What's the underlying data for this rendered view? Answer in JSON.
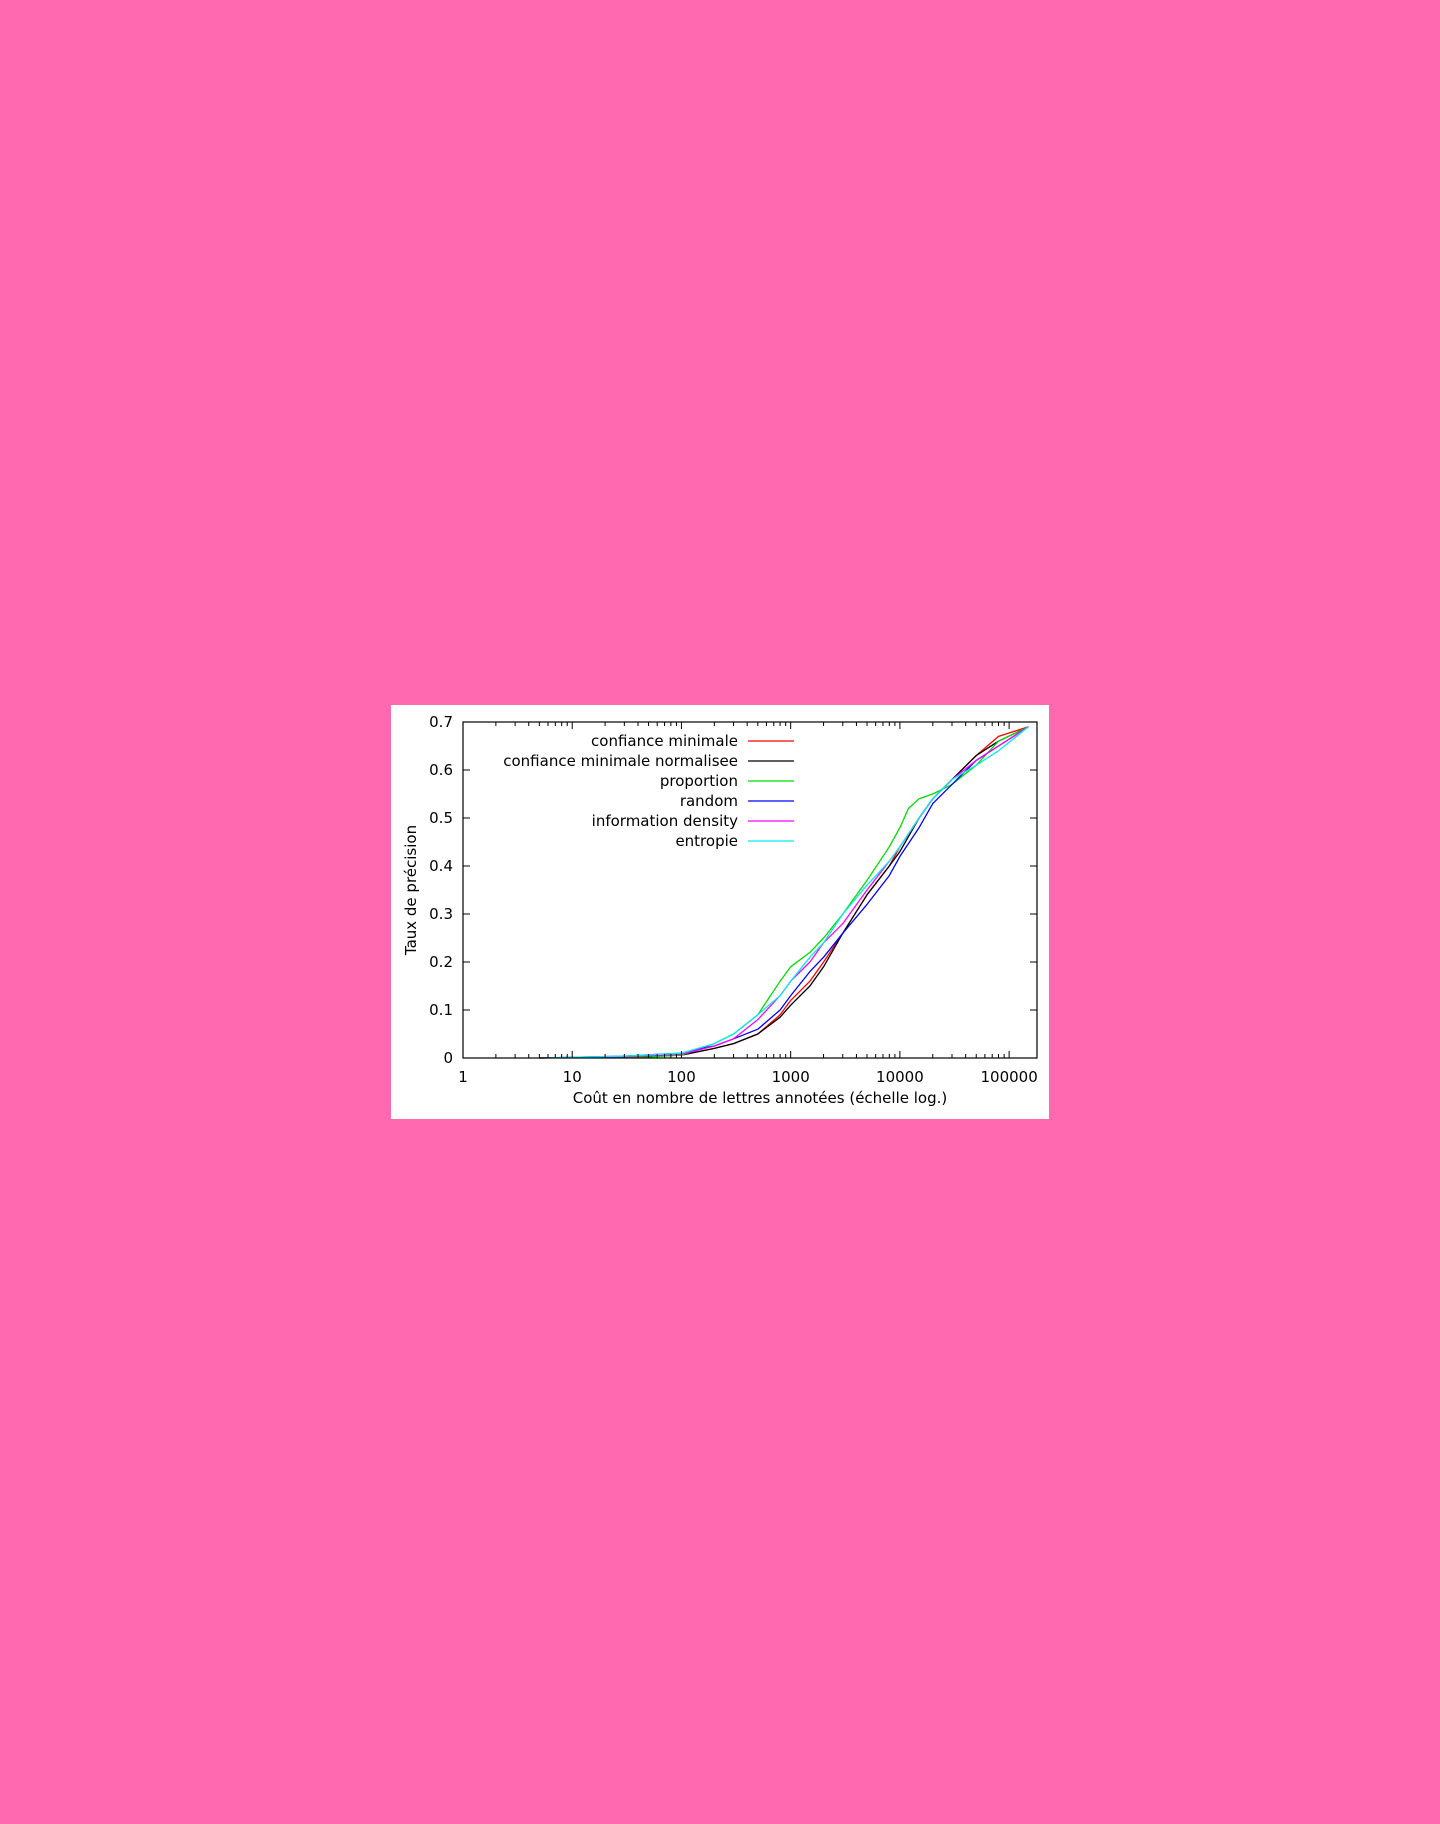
{
  "chart_data": {
    "type": "line",
    "title": "",
    "xlabel": "Coût en nombre de lettres annotées (échelle log.)",
    "ylabel": "Taux de précision",
    "x_scale": "log",
    "xlim": [
      1,
      180000
    ],
    "ylim": [
      0,
      0.7
    ],
    "x_ticks": [
      1,
      10,
      100,
      1000,
      10000,
      100000
    ],
    "x_tick_labels": [
      "1",
      "10",
      "100",
      "1000",
      "10000",
      "100000"
    ],
    "y_ticks": [
      0,
      0.1,
      0.2,
      0.3,
      0.4,
      0.5,
      0.6,
      0.7
    ],
    "y_tick_labels": [
      "0",
      "0.1",
      "0.2",
      "0.3",
      "0.4",
      "0.5",
      "0.6",
      "0.7"
    ],
    "grid": false,
    "legend_position": "top-left",
    "series": [
      {
        "name": "confiance minimale",
        "color": "#ff0000",
        "points": [
          [
            5,
            0
          ],
          [
            30,
            0.002
          ],
          [
            100,
            0.006
          ],
          [
            200,
            0.02
          ],
          [
            300,
            0.03
          ],
          [
            500,
            0.05
          ],
          [
            800,
            0.09
          ],
          [
            1000,
            0.12
          ],
          [
            1500,
            0.16
          ],
          [
            2000,
            0.2
          ],
          [
            3000,
            0.26
          ],
          [
            5000,
            0.34
          ],
          [
            8000,
            0.4
          ],
          [
            10000,
            0.44
          ],
          [
            15000,
            0.5
          ],
          [
            20000,
            0.54
          ],
          [
            30000,
            0.58
          ],
          [
            50000,
            0.63
          ],
          [
            80000,
            0.67
          ],
          [
            150000,
            0.69
          ]
        ]
      },
      {
        "name": "confiance minimale normalisee",
        "color": "#000000",
        "points": [
          [
            5,
            0
          ],
          [
            30,
            0.002
          ],
          [
            100,
            0.006
          ],
          [
            200,
            0.02
          ],
          [
            300,
            0.03
          ],
          [
            500,
            0.05
          ],
          [
            800,
            0.085
          ],
          [
            1000,
            0.11
          ],
          [
            1500,
            0.15
          ],
          [
            2000,
            0.19
          ],
          [
            3000,
            0.26
          ],
          [
            5000,
            0.34
          ],
          [
            8000,
            0.4
          ],
          [
            10000,
            0.43
          ],
          [
            15000,
            0.5
          ],
          [
            20000,
            0.54
          ],
          [
            30000,
            0.58
          ],
          [
            50000,
            0.63
          ],
          [
            80000,
            0.66
          ],
          [
            150000,
            0.69
          ]
        ]
      },
      {
        "name": "proportion",
        "color": "#00dd00",
        "points": [
          [
            5,
            0
          ],
          [
            50,
            0.002
          ],
          [
            100,
            0.006
          ],
          [
            150,
            0.02
          ],
          [
            200,
            0.03
          ],
          [
            300,
            0.05
          ],
          [
            500,
            0.09
          ],
          [
            800,
            0.16
          ],
          [
            1000,
            0.19
          ],
          [
            1500,
            0.22
          ],
          [
            2000,
            0.25
          ],
          [
            3000,
            0.3
          ],
          [
            5000,
            0.37
          ],
          [
            8000,
            0.44
          ],
          [
            10000,
            0.48
          ],
          [
            12000,
            0.52
          ],
          [
            15000,
            0.54
          ],
          [
            20000,
            0.55
          ],
          [
            30000,
            0.57
          ],
          [
            50000,
            0.61
          ],
          [
            80000,
            0.66
          ],
          [
            150000,
            0.69
          ]
        ]
      },
      {
        "name": "random",
        "color": "#0000ff",
        "points": [
          [
            5,
            0
          ],
          [
            30,
            0.004
          ],
          [
            100,
            0.01
          ],
          [
            150,
            0.02
          ],
          [
            200,
            0.025
          ],
          [
            300,
            0.04
          ],
          [
            500,
            0.06
          ],
          [
            800,
            0.1
          ],
          [
            1000,
            0.13
          ],
          [
            1500,
            0.18
          ],
          [
            2000,
            0.21
          ],
          [
            3000,
            0.26
          ],
          [
            5000,
            0.32
          ],
          [
            8000,
            0.38
          ],
          [
            10000,
            0.42
          ],
          [
            15000,
            0.48
          ],
          [
            20000,
            0.53
          ],
          [
            30000,
            0.57
          ],
          [
            50000,
            0.62
          ],
          [
            80000,
            0.65
          ],
          [
            150000,
            0.69
          ]
        ]
      },
      {
        "name": "information density",
        "color": "#ff00ff",
        "points": [
          [
            5,
            0
          ],
          [
            30,
            0.003
          ],
          [
            100,
            0.008
          ],
          [
            200,
            0.025
          ],
          [
            300,
            0.04
          ],
          [
            500,
            0.08
          ],
          [
            800,
            0.13
          ],
          [
            1000,
            0.16
          ],
          [
            1500,
            0.2
          ],
          [
            2000,
            0.24
          ],
          [
            3000,
            0.28
          ],
          [
            5000,
            0.35
          ],
          [
            8000,
            0.41
          ],
          [
            10000,
            0.44
          ],
          [
            15000,
            0.5
          ],
          [
            20000,
            0.54
          ],
          [
            30000,
            0.58
          ],
          [
            50000,
            0.62
          ],
          [
            80000,
            0.65
          ],
          [
            150000,
            0.69
          ]
        ]
      },
      {
        "name": "entropie",
        "color": "#00eeee",
        "points": [
          [
            5,
            0
          ],
          [
            30,
            0.004
          ],
          [
            100,
            0.01
          ],
          [
            200,
            0.03
          ],
          [
            300,
            0.05
          ],
          [
            500,
            0.09
          ],
          [
            800,
            0.13
          ],
          [
            1000,
            0.16
          ],
          [
            1500,
            0.21
          ],
          [
            2000,
            0.24
          ],
          [
            3000,
            0.3
          ],
          [
            5000,
            0.36
          ],
          [
            8000,
            0.41
          ],
          [
            10000,
            0.44
          ],
          [
            15000,
            0.5
          ],
          [
            20000,
            0.54
          ],
          [
            30000,
            0.58
          ],
          [
            50000,
            0.61
          ],
          [
            80000,
            0.64
          ],
          [
            150000,
            0.69
          ]
        ]
      }
    ]
  }
}
